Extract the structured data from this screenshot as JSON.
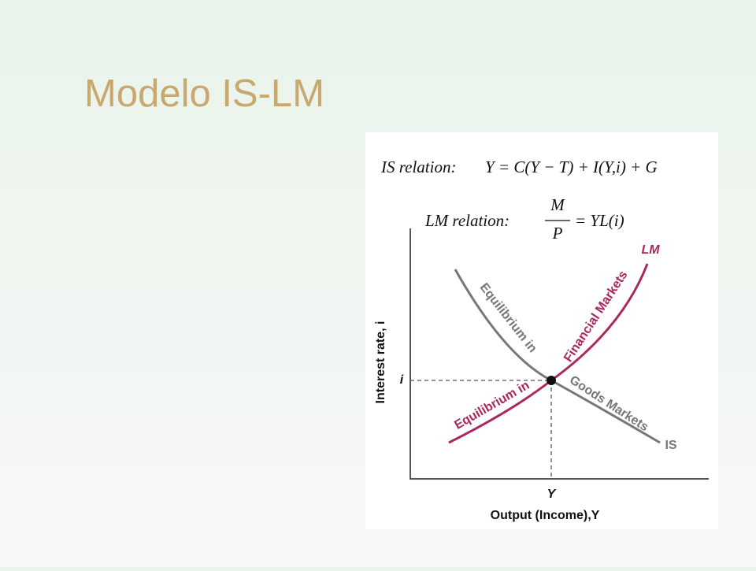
{
  "title": "Modelo IS-LM",
  "equations": {
    "is_label": "IS relation:",
    "is_formula": "Y = C(Y − T) + I(Y,i) + G",
    "lm_label": "LM relation:",
    "lm_numerator": "M",
    "lm_denominator": "P",
    "lm_rhs": "= YL(i)"
  },
  "diagram": {
    "y_axis_label": "Interest rate, i",
    "x_axis_label": "Output (Income),Y",
    "y_marker": "i",
    "x_marker": "Y",
    "lm_curve_label": "LM",
    "is_curve_label": "IS",
    "is_text_1": "Equilibrium in",
    "is_text_2": "Goods Markets",
    "lm_text_1": "Equilibrium in",
    "lm_text_2": "Financial Markets"
  }
}
